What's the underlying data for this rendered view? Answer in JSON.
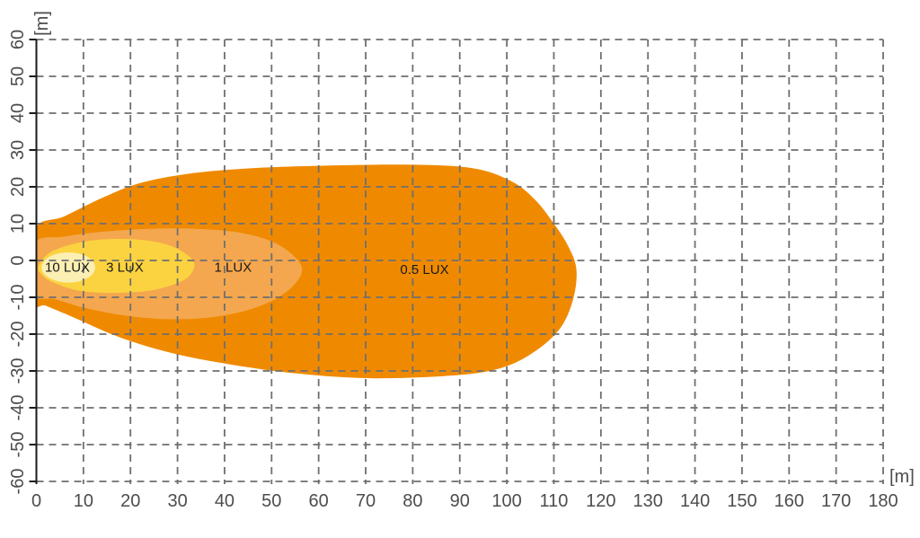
{
  "chart_data": {
    "type": "area",
    "subtype": "isolux-contour-beam-pattern",
    "title": "",
    "xlabel": "[m]",
    "ylabel": "[m]",
    "xlim": [
      0,
      180
    ],
    "ylim": [
      -60,
      60
    ],
    "x_ticks": [
      0,
      10,
      20,
      30,
      40,
      50,
      60,
      70,
      80,
      90,
      100,
      110,
      120,
      130,
      140,
      150,
      160,
      170,
      180
    ],
    "y_ticks": [
      60,
      50,
      40,
      30,
      20,
      10,
      0,
      -10,
      -20,
      -30,
      -40,
      -50,
      -60
    ],
    "grid": {
      "style": "dashed",
      "color": "#6F6F6F",
      "dash": [
        8,
        6
      ],
      "width": 1.8
    },
    "legend_position": "none",
    "contours": [
      {
        "value": 0.5,
        "label": "0.5 LUX",
        "color": "#EF8A00",
        "label_anchor": [
          82.5,
          -2.6
        ],
        "points": [
          [
            -0.5,
            8
          ],
          [
            6,
            12
          ],
          [
            14,
            17
          ],
          [
            22,
            21
          ],
          [
            32,
            23.5
          ],
          [
            45,
            25
          ],
          [
            60,
            25.7
          ],
          [
            80,
            26
          ],
          [
            93,
            25
          ],
          [
            101,
            21.5
          ],
          [
            106,
            16.5
          ],
          [
            110,
            10
          ],
          [
            113,
            4
          ],
          [
            114.8,
            -2.5
          ],
          [
            114,
            -11
          ],
          [
            111,
            -19
          ],
          [
            105,
            -25.5
          ],
          [
            98,
            -29.5
          ],
          [
            88,
            -31.3
          ],
          [
            72,
            -32
          ],
          [
            58,
            -31
          ],
          [
            45,
            -29
          ],
          [
            30,
            -25.5
          ],
          [
            18,
            -21
          ],
          [
            8,
            -15.5
          ],
          [
            2,
            -12.3
          ],
          [
            -0.5,
            -11
          ]
        ]
      },
      {
        "value": 1,
        "label": "1 LUX",
        "color": "#F4A74E",
        "label_anchor": [
          41.8,
          -2.0
        ],
        "points": [
          [
            -0.5,
            4.5
          ],
          [
            6,
            6.5
          ],
          [
            14,
            7.8
          ],
          [
            24,
            8.6
          ],
          [
            34,
            8.6
          ],
          [
            43,
            7.6
          ],
          [
            50,
            5.2
          ],
          [
            54.5,
            1.5
          ],
          [
            56.5,
            -2.5
          ],
          [
            54.5,
            -7
          ],
          [
            50,
            -11
          ],
          [
            44,
            -13.8
          ],
          [
            36,
            -15.6
          ],
          [
            27,
            -15.9
          ],
          [
            18,
            -14.8
          ],
          [
            10,
            -12.8
          ],
          [
            4,
            -10.5
          ],
          [
            -0.5,
            -9
          ]
        ]
      },
      {
        "value": 3,
        "label": "3 LUX",
        "color": "#FBD340",
        "label_anchor": [
          18.8,
          -2.0
        ],
        "points": [
          [
            0.4,
            -1.8
          ],
          [
            2.5,
            1.8
          ],
          [
            7,
            4.2
          ],
          [
            13,
            5.6
          ],
          [
            20,
            5.8
          ],
          [
            26,
            4.9
          ],
          [
            30.5,
            2.8
          ],
          [
            33.5,
            -0.5
          ],
          [
            32.5,
            -4.2
          ],
          [
            29,
            -6.6
          ],
          [
            23.5,
            -8.3
          ],
          [
            16,
            -8.8
          ],
          [
            9,
            -8.2
          ],
          [
            4,
            -6.2
          ],
          [
            1.4,
            -4.2
          ]
        ]
      },
      {
        "value": 10,
        "label": "10 LUX",
        "color": "#FBEFB3",
        "label_anchor": [
          6.6,
          -2.0
        ],
        "ellipse": {
          "cx": 6.8,
          "cy": -1.9,
          "rx": 5.7,
          "ry": 4.1
        }
      }
    ]
  },
  "axes": {
    "x_unit_label": "[m]",
    "y_unit_label": "[m]",
    "axis_color": "#1A1A1A",
    "tick_label_color": "#4D4D4D",
    "contour_label_color": "#1A1A1A"
  }
}
